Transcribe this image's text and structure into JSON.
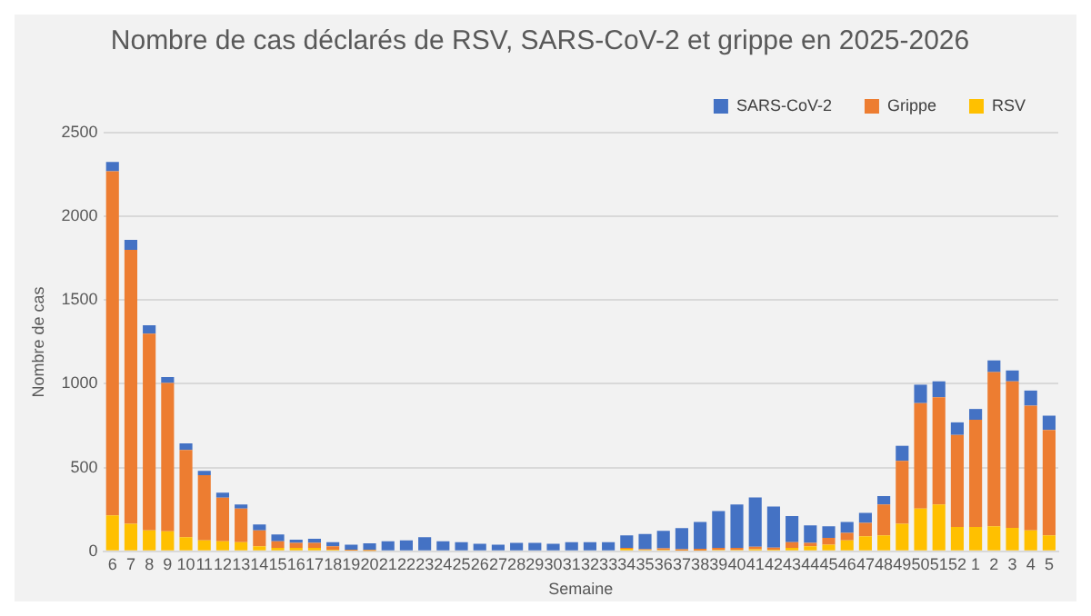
{
  "chart_data": {
    "type": "bar",
    "title": "Nombre de cas déclarés de RSV, SARS-CoV-2 et grippe en 2025-2026",
    "xlabel": "Semaine",
    "ylabel": "Nombre de cas",
    "stacked": true,
    "grid": "y",
    "legend": "top right",
    "categories": [
      "6",
      "7",
      "8",
      "9",
      "10",
      "11",
      "12",
      "13",
      "14",
      "15",
      "16",
      "17",
      "18",
      "19",
      "20",
      "21",
      "22",
      "23",
      "24",
      "25",
      "26",
      "27",
      "28",
      "29",
      "30",
      "31",
      "32",
      "33",
      "34",
      "35",
      "36",
      "37",
      "38",
      "39",
      "40",
      "41",
      "42",
      "43",
      "44",
      "45",
      "46",
      "47",
      "48",
      "49",
      "50",
      "51",
      "52",
      "1",
      "2",
      "3",
      "4",
      "5"
    ],
    "ylim": [
      0,
      2500
    ],
    "yticks": [
      0,
      500,
      1000,
      1500,
      2000,
      2500
    ],
    "series": [
      {
        "name": "RSV",
        "color": "#ffc000",
        "values": [
          215,
          165,
          125,
          120,
          85,
          65,
          60,
          55,
          30,
          20,
          20,
          20,
          10,
          5,
          3,
          null,
          null,
          null,
          null,
          null,
          null,
          null,
          null,
          null,
          null,
          null,
          null,
          null,
          15,
          8,
          8,
          5,
          5,
          8,
          8,
          12,
          10,
          20,
          30,
          40,
          65,
          90,
          95,
          165,
          255,
          280,
          145,
          145,
          150,
          140,
          125,
          95
        ]
      },
      {
        "name": "Grippe",
        "color": "#ed7d31",
        "values": [
          2055,
          1635,
          1175,
          885,
          520,
          390,
          260,
          200,
          95,
          40,
          30,
          30,
          20,
          5,
          5,
          null,
          null,
          null,
          null,
          null,
          null,
          null,
          null,
          null,
          null,
          null,
          null,
          null,
          5,
          5,
          10,
          8,
          10,
          12,
          12,
          15,
          12,
          35,
          20,
          40,
          45,
          80,
          185,
          375,
          630,
          640,
          550,
          640,
          920,
          875,
          745,
          630
        ]
      },
      {
        "name": "SARS-CoV-2",
        "color": "#4472c4",
        "values": [
          55,
          60,
          50,
          35,
          40,
          25,
          30,
          25,
          35,
          40,
          20,
          25,
          25,
          30,
          40,
          60,
          65,
          85,
          60,
          55,
          45,
          40,
          50,
          50,
          45,
          55,
          55,
          55,
          75,
          90,
          105,
          125,
          160,
          220,
          260,
          295,
          245,
          155,
          105,
          70,
          65,
          60,
          50,
          90,
          110,
          95,
          75,
          65,
          70,
          65,
          90,
          85
        ]
      }
    ]
  }
}
